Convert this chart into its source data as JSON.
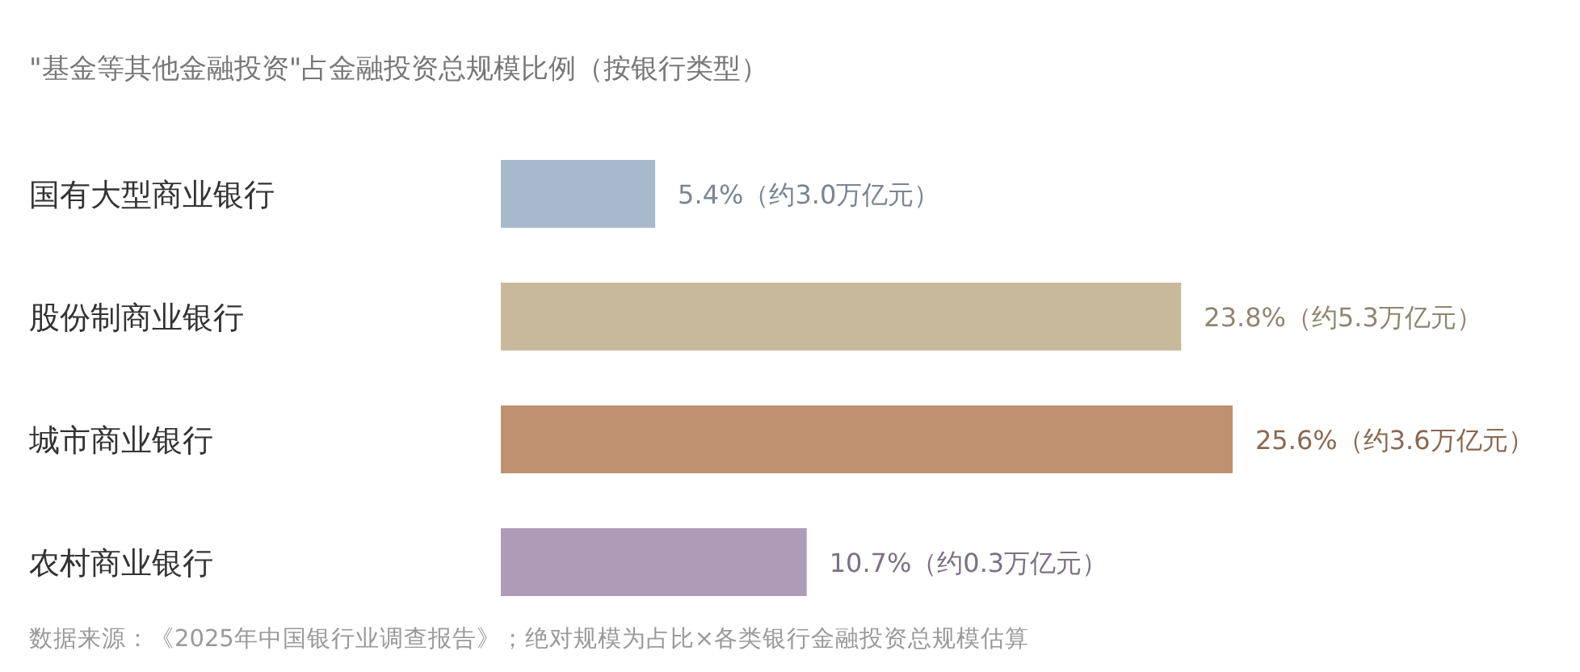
{
  "chart_data": {
    "type": "bar",
    "orientation": "horizontal",
    "title": "\"基金等其他金融投资\"占金融投资总规模比例（按银行类型）",
    "categories": [
      "国有大型商业银行",
      "股份制商业银行",
      "城市商业银行",
      "农村商业银行"
    ],
    "values": [
      5.4,
      23.8,
      25.6,
      10.7
    ],
    "colors": [
      "#a9b9cc",
      "#c8b99a",
      "#bf9170",
      "#ae9bb8"
    ],
    "value_labels": [
      "5.4%（约3.0万亿元）",
      "23.8%（约5.3万亿元）",
      "25.6%（约3.6万亿元）",
      "10.7%（约0.3万亿元）"
    ],
    "annotations": [
      "数据来源：《2025年中国银行业调查报告》；绝对规模为占比×各类银行金融投资总规模估算"
    ]
  }
}
